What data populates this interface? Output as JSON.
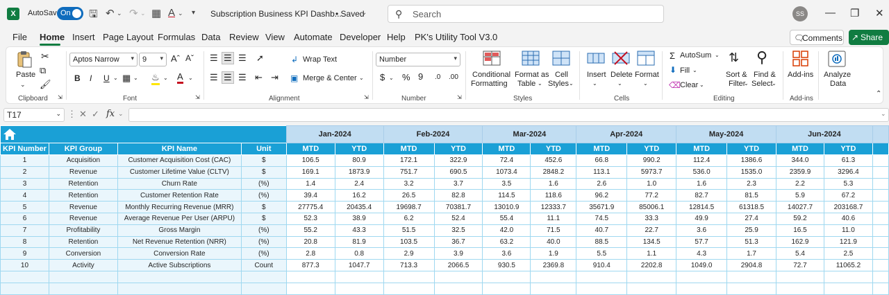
{
  "titlebar": {
    "autosave_label": "AutoSave",
    "autosave_state": "On",
    "document_title": "Subscription Business KPI Dashb...",
    "save_status": "• Saved",
    "search_placeholder": "Search",
    "user_initials": "SS"
  },
  "menu_tabs": [
    "File",
    "Home",
    "Insert",
    "Page Layout",
    "Formulas",
    "Data",
    "Review",
    "View",
    "Automate",
    "Developer",
    "Help",
    "PK's Utility Tool V3.0"
  ],
  "active_tab": "Home",
  "comments_label": "Comments",
  "share_label": "Share",
  "ribbon": {
    "clipboard": {
      "label": "Clipboard",
      "paste": "Paste"
    },
    "font": {
      "label": "Font",
      "font_name": "Aptos Narrow",
      "font_size": "9"
    },
    "alignment": {
      "label": "Alignment",
      "wrap_text": "Wrap Text",
      "merge_center": "Merge & Center"
    },
    "number": {
      "label": "Number",
      "format": "Number"
    },
    "styles": {
      "label": "Styles",
      "conditional_1": "Conditional",
      "conditional_2": "Formatting",
      "format_table_1": "Format as",
      "format_table_2": "Table",
      "cell_styles_1": "Cell",
      "cell_styles_2": "Styles"
    },
    "cells": {
      "label": "Cells",
      "insert": "Insert",
      "delete": "Delete",
      "format": "Format"
    },
    "editing": {
      "label": "Editing",
      "autosum": "AutoSum",
      "fill": "Fill",
      "clear": "Clear",
      "sort_1": "Sort &",
      "sort_2": "Filter",
      "find_1": "Find &",
      "find_2": "Select"
    },
    "addins": {
      "label": "Add-ins",
      "addins": "Add-ins"
    },
    "analyze": {
      "analyze_1": "Analyze",
      "analyze_2": "Data"
    }
  },
  "formula_bar": {
    "name_box": "T17",
    "formula": ""
  },
  "sheet": {
    "months": [
      "Jan-2024",
      "Feb-2024",
      "Mar-2024",
      "Apr-2024",
      "May-2024",
      "Jun-2024"
    ],
    "headers": [
      "KPI Number",
      "KPI Group",
      "KPI Name",
      "Unit"
    ],
    "mtd_label": "MTD",
    "ytd_label": "YTD",
    "rows": [
      {
        "n": "1",
        "group": "Acquisition",
        "name": "Customer Acquisition Cost (CAC)",
        "unit": "$",
        "v": [
          "106.5",
          "80.9",
          "172.1",
          "322.9",
          "72.4",
          "452.6",
          "66.8",
          "990.2",
          "112.4",
          "1386.6",
          "344.0",
          "61.3"
        ]
      },
      {
        "n": "2",
        "group": "Revenue",
        "name": "Customer Lifetime Value (CLTV)",
        "unit": "$",
        "v": [
          "169.1",
          "1873.9",
          "751.7",
          "690.5",
          "1073.4",
          "2848.2",
          "113.1",
          "5973.7",
          "536.0",
          "1535.0",
          "2359.9",
          "3296.4"
        ]
      },
      {
        "n": "3",
        "group": "Retention",
        "name": "Churn Rate",
        "unit": "(%)",
        "v": [
          "1.4",
          "2.4",
          "3.2",
          "3.7",
          "3.5",
          "1.6",
          "2.6",
          "1.0",
          "1.6",
          "2.3",
          "2.2",
          "5.3"
        ]
      },
      {
        "n": "4",
        "group": "Retention",
        "name": "Customer Retention Rate",
        "unit": "(%)",
        "v": [
          "39.4",
          "16.2",
          "26.5",
          "82.8",
          "114.5",
          "118.6",
          "96.2",
          "77.2",
          "82.7",
          "81.5",
          "5.9",
          "67.2"
        ]
      },
      {
        "n": "5",
        "group": "Revenue",
        "name": "Monthly Recurring Revenue (MRR)",
        "unit": "$",
        "v": [
          "27775.4",
          "20435.4",
          "19698.7",
          "70381.7",
          "13010.9",
          "12333.7",
          "35671.9",
          "85006.1",
          "12814.5",
          "61318.5",
          "14027.7",
          "203168.7"
        ]
      },
      {
        "n": "6",
        "group": "Revenue",
        "name": "Average Revenue Per User (ARPU)",
        "unit": "$",
        "v": [
          "52.3",
          "38.9",
          "6.2",
          "52.4",
          "55.4",
          "11.1",
          "74.5",
          "33.3",
          "49.9",
          "27.4",
          "59.2",
          "40.6"
        ]
      },
      {
        "n": "7",
        "group": "Profitability",
        "name": "Gross Margin",
        "unit": "(%)",
        "v": [
          "55.2",
          "43.3",
          "51.5",
          "32.5",
          "42.0",
          "71.5",
          "40.7",
          "22.7",
          "3.6",
          "25.9",
          "16.5",
          "11.0"
        ]
      },
      {
        "n": "8",
        "group": "Retention",
        "name": "Net Revenue Retention (NRR)",
        "unit": "(%)",
        "v": [
          "20.8",
          "81.9",
          "103.5",
          "36.7",
          "63.2",
          "40.0",
          "88.5",
          "134.5",
          "57.7",
          "51.3",
          "162.9",
          "121.9"
        ]
      },
      {
        "n": "9",
        "group": "Conversion",
        "name": "Conversion Rate",
        "unit": "(%)",
        "v": [
          "2.8",
          "0.8",
          "2.9",
          "3.9",
          "3.6",
          "1.9",
          "5.5",
          "1.1",
          "4.3",
          "1.7",
          "5.4",
          "2.5"
        ]
      },
      {
        "n": "10",
        "group": "Activity",
        "name": "Active Subscriptions",
        "unit": "Count",
        "v": [
          "877.3",
          "1047.7",
          "713.3",
          "2066.5",
          "930.5",
          "2369.8",
          "910.4",
          "2202.8",
          "1049.0",
          "2904.8",
          "72.7",
          "11065.2"
        ]
      }
    ]
  },
  "colors": {
    "header_blue": "#1aa0d6",
    "month_band": "#c1ddf2",
    "excel_green": "#107c41"
  }
}
